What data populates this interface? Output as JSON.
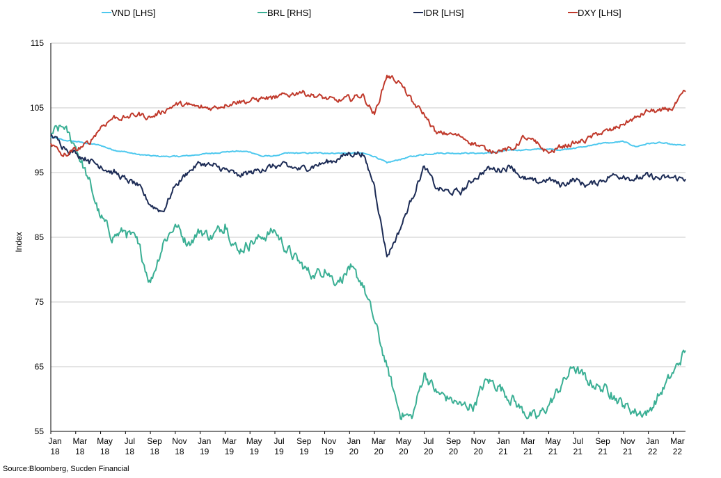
{
  "chart_data": {
    "type": "line",
    "title": "",
    "ylabel": "Index",
    "xlabel": "",
    "ylim": [
      55,
      115
    ],
    "yticks": [
      55,
      65,
      75,
      85,
      95,
      105,
      115
    ],
    "x_range": [
      "2018-01",
      "2022-03"
    ],
    "xtick_labels": [
      {
        "m": "Jan",
        "y": "18"
      },
      {
        "m": "Mar",
        "y": "18"
      },
      {
        "m": "May",
        "y": "18"
      },
      {
        "m": "Jul",
        "y": "18"
      },
      {
        "m": "Sep",
        "y": "18"
      },
      {
        "m": "Nov",
        "y": "18"
      },
      {
        "m": "Jan",
        "y": "19"
      },
      {
        "m": "Mar",
        "y": "19"
      },
      {
        "m": "May",
        "y": "19"
      },
      {
        "m": "Jul",
        "y": "19"
      },
      {
        "m": "Sep",
        "y": "19"
      },
      {
        "m": "Nov",
        "y": "19"
      },
      {
        "m": "Jan",
        "y": "20"
      },
      {
        "m": "Mar",
        "y": "20"
      },
      {
        "m": "May",
        "y": "20"
      },
      {
        "m": "Jul",
        "y": "20"
      },
      {
        "m": "Sep",
        "y": "20"
      },
      {
        "m": "Nov",
        "y": "20"
      },
      {
        "m": "Jan",
        "y": "21"
      },
      {
        "m": "Mar",
        "y": "21"
      },
      {
        "m": "May",
        "y": "21"
      },
      {
        "m": "Jul",
        "y": "21"
      },
      {
        "m": "Sep",
        "y": "21"
      },
      {
        "m": "Nov",
        "y": "21"
      },
      {
        "m": "Jan",
        "y": "22"
      },
      {
        "m": "Mar",
        "y": "22"
      }
    ],
    "grid": "horizontal",
    "legend_position": "top",
    "x": [
      "2018-01",
      "2018-02",
      "2018-03",
      "2018-04",
      "2018-05",
      "2018-06",
      "2018-07",
      "2018-08",
      "2018-09",
      "2018-10",
      "2018-11",
      "2018-12",
      "2019-01",
      "2019-02",
      "2019-03",
      "2019-04",
      "2019-05",
      "2019-06",
      "2019-07",
      "2019-08",
      "2019-09",
      "2019-10",
      "2019-11",
      "2019-12",
      "2020-01",
      "2020-02",
      "2020-03",
      "2020-04",
      "2020-05",
      "2020-06",
      "2020-07",
      "2020-08",
      "2020-09",
      "2020-10",
      "2020-11",
      "2020-12",
      "2021-01",
      "2021-02",
      "2021-03",
      "2021-04",
      "2021-05",
      "2021-06",
      "2021-07",
      "2021-08",
      "2021-09",
      "2021-10",
      "2021-11",
      "2021-12",
      "2022-01",
      "2022-02",
      "2022-03",
      "2022-03-31"
    ],
    "series": [
      {
        "name": "VND [LHS]",
        "color": "#4dc8ee",
        "values": [
          100.5,
          100,
          99.8,
          99.5,
          99.2,
          98.5,
          98.2,
          97.8,
          97.6,
          97.5,
          97.5,
          97.6,
          97.8,
          98,
          98.2,
          98.3,
          98.2,
          97.5,
          97.6,
          98,
          98,
          98,
          98,
          98,
          98,
          98,
          97.5,
          96.5,
          97,
          97.5,
          97.8,
          98,
          98,
          98,
          98,
          98,
          98.2,
          98.5,
          98.5,
          98.6,
          98.6,
          98.5,
          98.8,
          99,
          99.5,
          99.6,
          99.8,
          99,
          99.5,
          99.6,
          99.3,
          99.2
        ]
      },
      {
        "name": "BRL [RHS]",
        "color": "#3aaf94",
        "values": [
          101,
          102,
          99,
          94,
          88,
          85,
          86,
          84,
          78,
          84,
          87,
          84,
          86,
          85,
          87,
          83,
          84,
          85,
          86,
          83,
          81,
          79,
          80,
          78,
          80,
          78,
          72,
          65,
          58,
          57,
          64,
          61,
          60,
          59,
          59,
          63,
          62,
          60,
          58,
          57,
          59,
          62,
          65,
          63,
          62,
          61,
          59,
          58,
          58,
          61,
          64,
          67.5
        ]
      },
      {
        "name": "IDR [LHS]",
        "color": "#1c2b55",
        "values": [
          101,
          99,
          98,
          97,
          96,
          95,
          94,
          93,
          90,
          89,
          93,
          95,
          96.5,
          96,
          95.5,
          94.5,
          95,
          95.5,
          96,
          96,
          95.5,
          96,
          96.5,
          97,
          98,
          98,
          93,
          82,
          86,
          91,
          96,
          92.5,
          92,
          92,
          94,
          95.5,
          95.5,
          96,
          94,
          93.5,
          94,
          93,
          94,
          93,
          93.5,
          94.5,
          94.5,
          94,
          94.5,
          94,
          94.2,
          94
        ]
      },
      {
        "name": "DXY [LHS]",
        "color": "#c0392b",
        "values": [
          99.5,
          97.5,
          98.5,
          99.5,
          102,
          103.5,
          103.5,
          104,
          103.5,
          104.5,
          105.5,
          105.5,
          105,
          105,
          105.5,
          106,
          106,
          106.5,
          106.5,
          107,
          107.5,
          107,
          106.5,
          106,
          106.5,
          107,
          104,
          110,
          109,
          106,
          104,
          101,
          101,
          100.5,
          99.5,
          98.5,
          98.5,
          98.5,
          100.5,
          99.5,
          98,
          99,
          99.5,
          100,
          101,
          101.5,
          102.5,
          103.5,
          104.5,
          104.5,
          105,
          107.5
        ]
      }
    ]
  },
  "source_text": "Source:Bloomberg, Sucden Financial"
}
